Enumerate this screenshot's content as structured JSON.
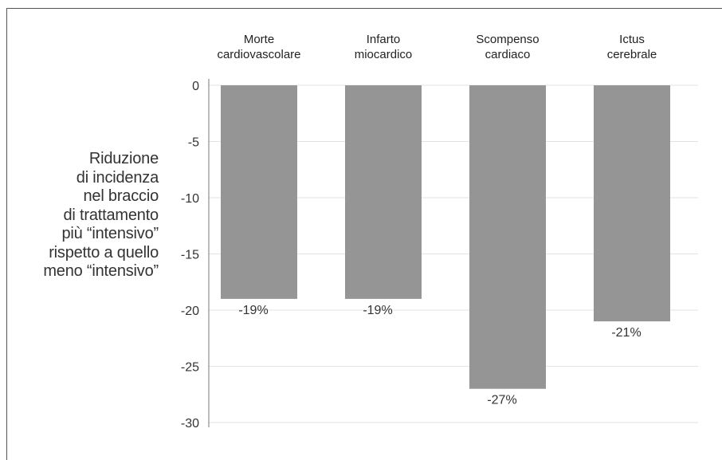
{
  "chart_data": {
    "type": "bar",
    "categories": [
      [
        "Morte",
        "cardiovascolare"
      ],
      [
        "Infarto",
        "miocardico"
      ],
      [
        "Scompenso",
        "cardiaco"
      ],
      [
        "Ictus",
        "cerebrale"
      ]
    ],
    "values": [
      -19,
      -19,
      -27,
      -21
    ],
    "data_labels": [
      "-19%",
      "-19%",
      "-27%",
      "-21%"
    ],
    "ylabel": "Riduzione\ndi incidenza\nnel braccio\ndi trattamento\npiù “intensivo”\nrispetto a quello\nmeno “intensivo”",
    "ylim": [
      -30,
      0
    ],
    "yticks": [
      0,
      -5,
      -10,
      -15,
      -20,
      -25,
      -30
    ],
    "grid": true,
    "category_axis_position": "top",
    "colors": {
      "bar": "#959595",
      "grid": "#e3e3e3",
      "axis": "#777777"
    }
  }
}
